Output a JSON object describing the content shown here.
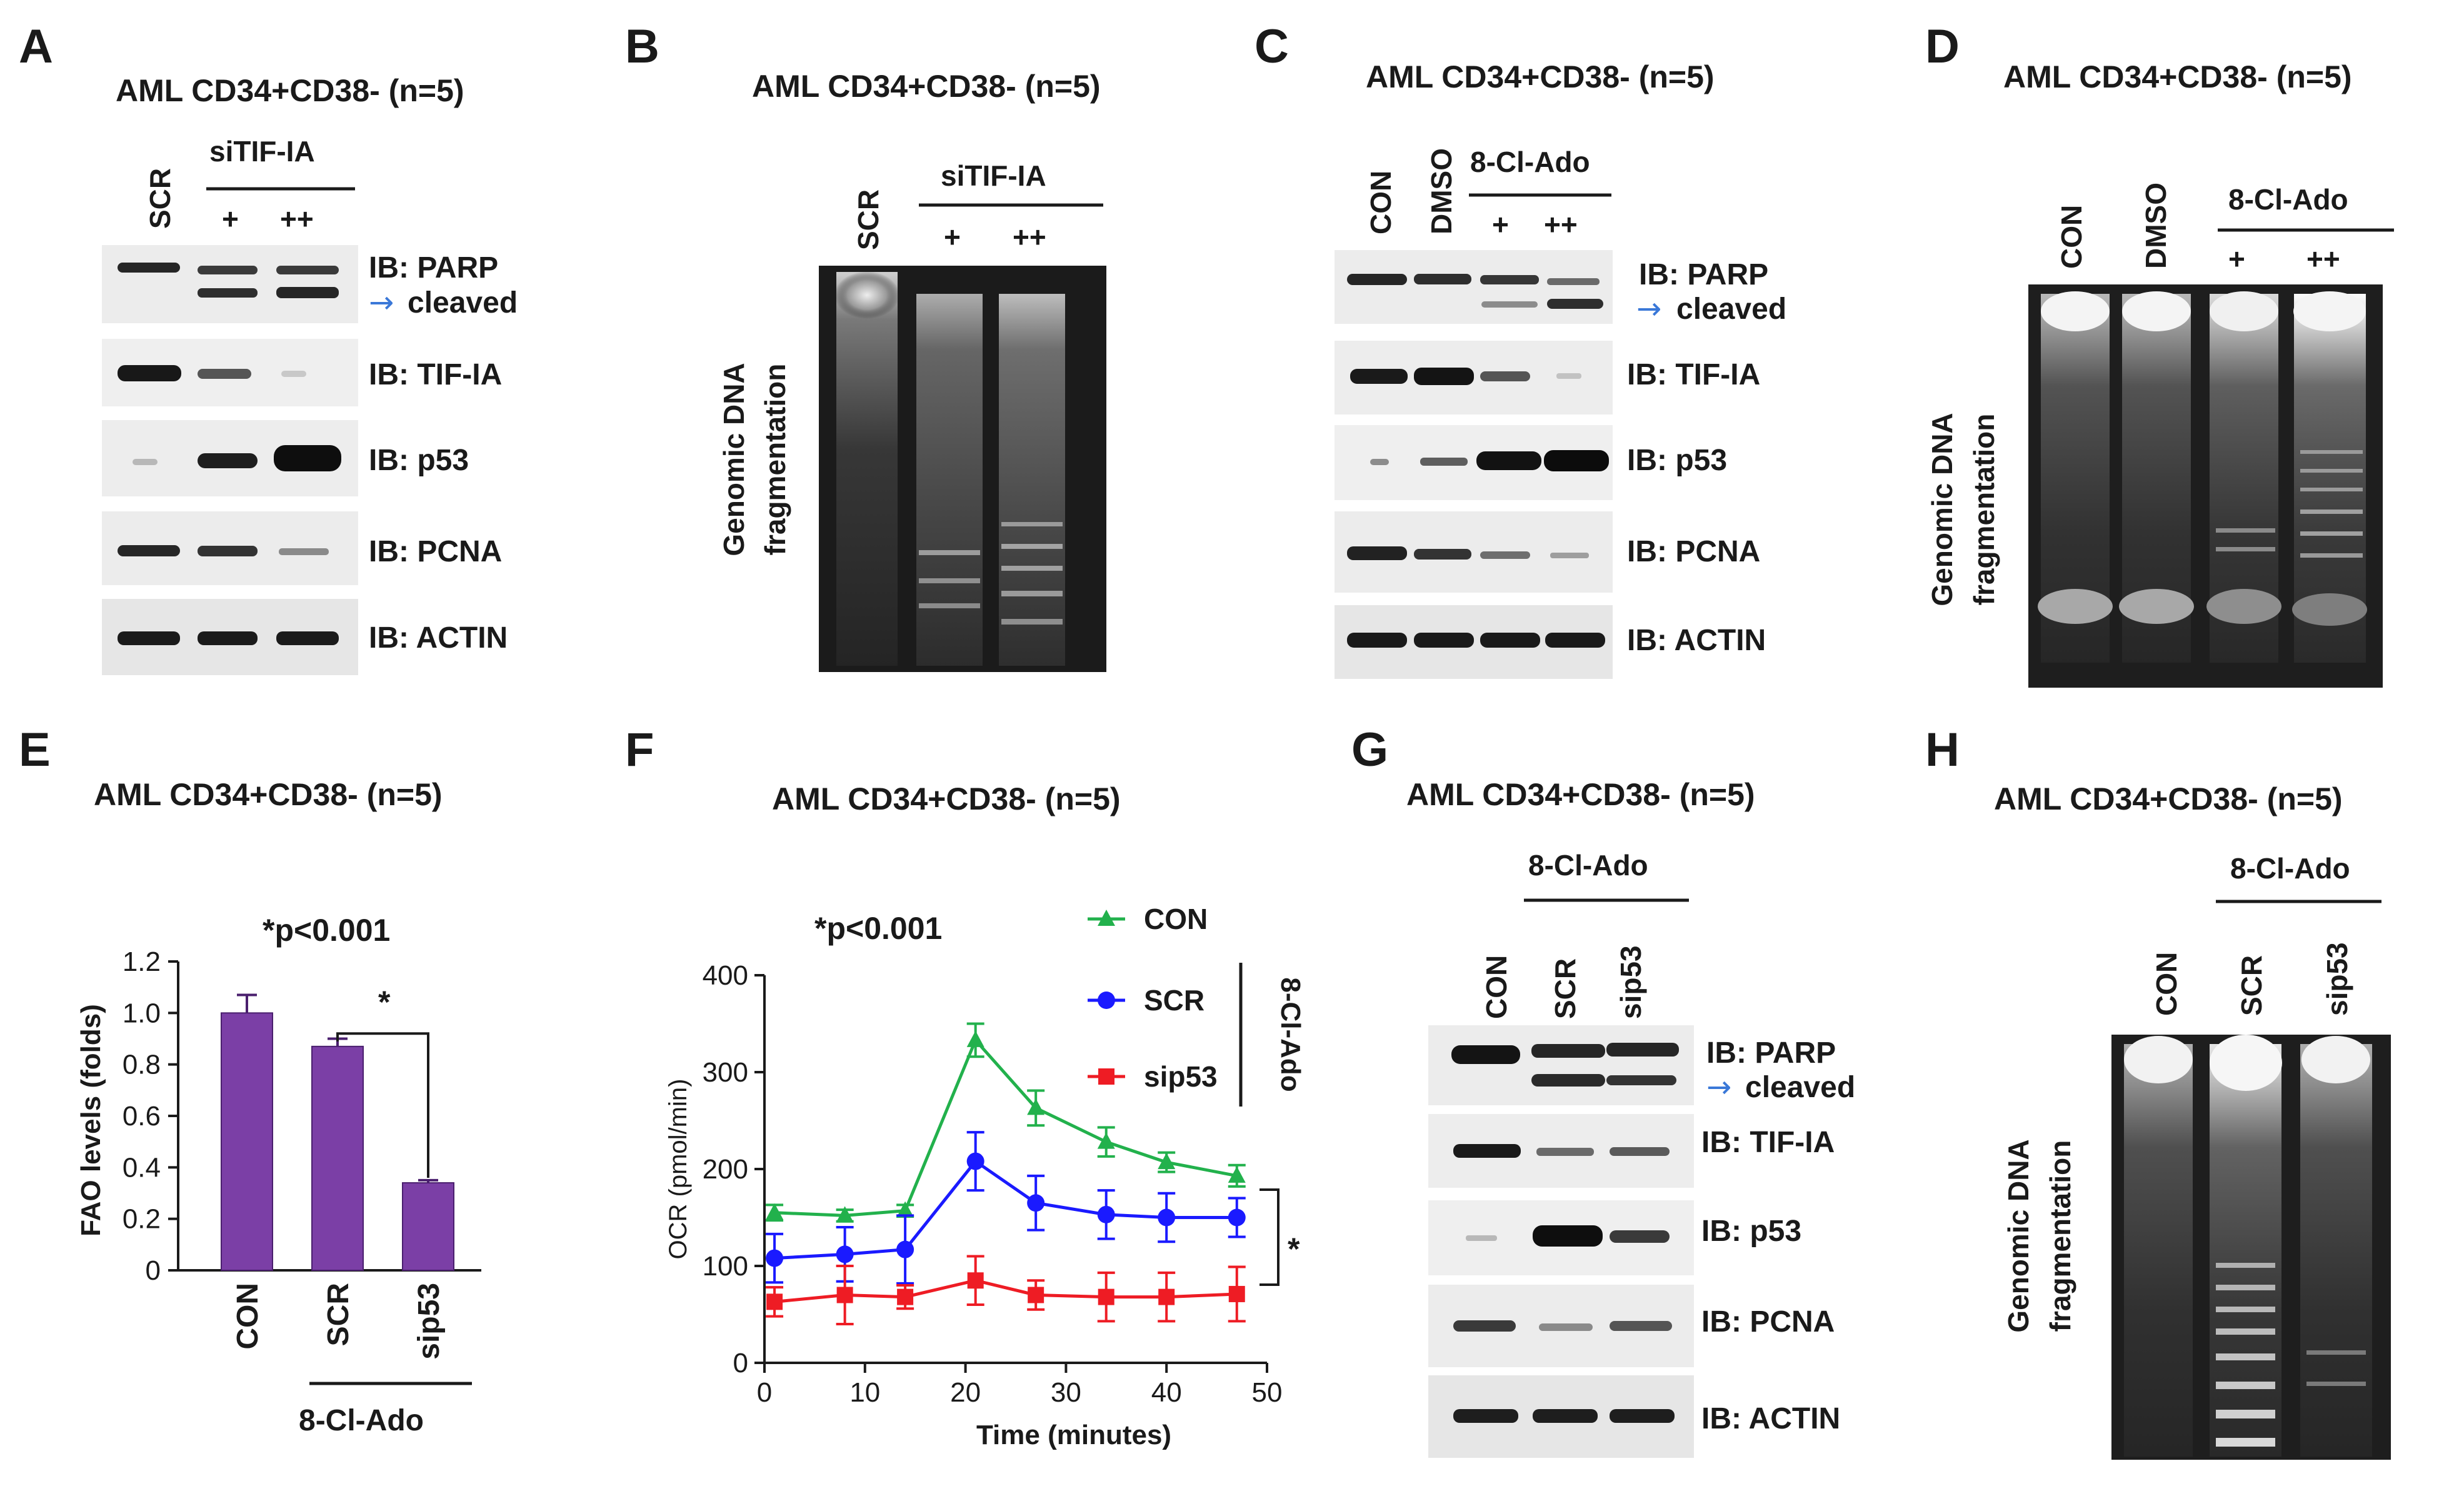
{
  "panels": {
    "A": {
      "letter": "A",
      "title": "AML CD34+CD38- (n=5)",
      "lanes": [
        "SCR",
        "+",
        "++"
      ],
      "group_label": "siTIF-IA",
      "blots": [
        "IB: PARP",
        "IB: TIF-IA",
        "IB: p53",
        "IB: PCNA",
        "IB: ACTIN"
      ],
      "cleaved_label": "cleaved",
      "arrow_glyph": "→"
    },
    "B": {
      "letter": "B",
      "title": "AML CD34+CD38- (n=5)",
      "lanes": [
        "SCR",
        "+",
        "++"
      ],
      "group_label": "siTIF-IA",
      "side_label_1": "Genomic DNA",
      "side_label_2": "fragmentation"
    },
    "C": {
      "letter": "C",
      "title": "AML CD34+CD38- (n=5)",
      "lanes": [
        "CON",
        "DMSO",
        "+",
        "++"
      ],
      "group_label": "8-Cl-Ado",
      "blots": [
        "IB: PARP",
        "IB: TIF-IA",
        "IB: p53",
        "IB: PCNA",
        "IB: ACTIN"
      ],
      "cleaved_label": "cleaved",
      "arrow_glyph": "→"
    },
    "D": {
      "letter": "D",
      "title": "AML CD34+CD38- (n=5)",
      "lanes": [
        "CON",
        "DMSO",
        "+",
        "++"
      ],
      "group_label": "8-Cl-Ado",
      "side_label_1": "Genomic DNA",
      "side_label_2": "fragmentation"
    },
    "E": {
      "letter": "E",
      "title": "AML CD34+CD38- (n=5)",
      "pvalue": "*p<0.001",
      "star": "*",
      "group_label": "8-Cl-Ado"
    },
    "F": {
      "letter": "F",
      "title": "AML CD34+CD38- (n=5)",
      "pvalue": "*p<0.001",
      "star": "*",
      "bracket_label": "8-Cl-Ado"
    },
    "G": {
      "letter": "G",
      "title": "AML CD34+CD38- (n=5)",
      "lanes": [
        "CON",
        "SCR",
        "sip53"
      ],
      "group_label": "8-Cl-Ado",
      "blots": [
        "IB: PARP",
        "IB: TIF-IA",
        "IB: p53",
        "IB: PCNA",
        "IB: ACTIN"
      ],
      "cleaved_label": "cleaved",
      "arrow_glyph": "→"
    },
    "H": {
      "letter": "H",
      "title": "AML CD34+CD38- (n=5)",
      "lanes": [
        "CON",
        "SCR",
        "sip53"
      ],
      "group_label": "8-Cl-Ado",
      "side_label_1": "Genomic DNA",
      "side_label_2": "fragmentation"
    }
  },
  "colors": {
    "bar": "#7b3fa6",
    "bar_edge": "#4a1f6e",
    "con": "#22b14c",
    "scr": "#1a1aff",
    "sip53": "#ee1c24",
    "arrow": "#3a78d8"
  },
  "chart_data": [
    {
      "type": "bar",
      "panel": "E",
      "categories": [
        "CON",
        "SCR",
        "sip53"
      ],
      "values": [
        1.0,
        0.87,
        0.34
      ],
      "errors": [
        0.07,
        0.03,
        0.01
      ],
      "ylabel": "FAO levels (folds)",
      "ylim": [
        0,
        1.2
      ],
      "yticks": [
        0,
        0.2,
        0.4,
        0.6,
        0.8,
        1.0,
        1.2
      ],
      "ytick_labels": [
        "0",
        "0.2",
        "0.4",
        "0.6",
        "0.8",
        "1.0",
        "1.2"
      ],
      "grid": false
    },
    {
      "type": "line",
      "panel": "F",
      "x": [
        1,
        8,
        14,
        21,
        27,
        34,
        40,
        47
      ],
      "series": [
        {
          "name": "CON",
          "marker": "triangle",
          "values": [
            155,
            152,
            157,
            333,
            263,
            228,
            207,
            193
          ],
          "errors": [
            8,
            6,
            6,
            17,
            18,
            15,
            10,
            11
          ]
        },
        {
          "name": "SCR",
          "marker": "circle",
          "values": [
            108,
            112,
            117,
            208,
            165,
            153,
            150,
            150
          ],
          "errors": [
            25,
            28,
            35,
            30,
            28,
            25,
            25,
            20
          ]
        },
        {
          "name": "sip53",
          "marker": "square",
          "values": [
            63,
            70,
            68,
            85,
            70,
            68,
            68,
            71
          ],
          "errors": [
            15,
            30,
            12,
            25,
            15,
            25,
            25,
            28
          ]
        }
      ],
      "xlabel": "Time (minutes)",
      "ylabel": "OCR (pmol/min)",
      "xlim": [
        0,
        50
      ],
      "ylim": [
        0,
        400
      ],
      "xticks": [
        0,
        10,
        20,
        30,
        40,
        50
      ],
      "xtick_labels": [
        "0",
        "10",
        "20",
        "30",
        "40",
        "50"
      ],
      "yticks": [
        0,
        100,
        200,
        300,
        400
      ],
      "ytick_labels": [
        "0",
        "100",
        "200",
        "300",
        "400"
      ],
      "legend": "top-right",
      "grid": false
    }
  ]
}
